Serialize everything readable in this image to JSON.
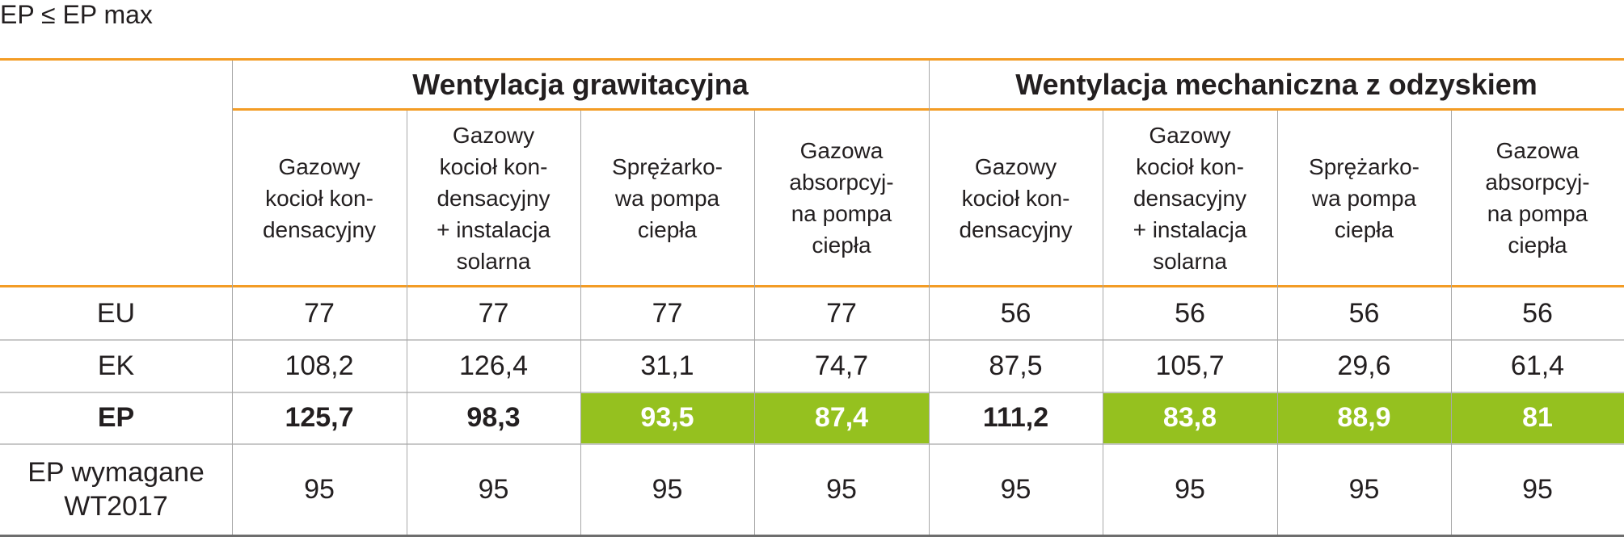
{
  "caption": "EP ≤ EP max",
  "groups": [
    {
      "title": "Wentylacja grawitacyjna"
    },
    {
      "title": "Wentylacja mechaniczna z odzyskiem"
    }
  ],
  "columns": [
    "Gazowy\nkocioł kon-\ndensacyjny",
    "Gazowy\nkocioł kon-\ndensacyjny\n+ instalacja\nsolarna",
    "Sprężarko-\nwa pompa\nciepła",
    "Gazowa\nabsorpcyj-\nna pompa\nciepła",
    "Gazowy\nkocioł kon-\ndensacyjny",
    "Gazowy\nkocioł kon-\ndensacyjny\n+ instalacja\nsolarna",
    "Sprężarko-\nwa pompa\nciepła",
    "Gazowa\nabsorpcyj-\nna pompa\nciepła"
  ],
  "rows": [
    {
      "label": "EU",
      "values": [
        "77",
        "77",
        "77",
        "77",
        "56",
        "56",
        "56",
        "56"
      ]
    },
    {
      "label": "EK",
      "values": [
        "108,2",
        "126,4",
        "31,1",
        "74,7",
        "87,5",
        "105,7",
        "29,6",
        "61,4"
      ]
    },
    {
      "label": "EP",
      "values": [
        "125,7",
        "98,3",
        "93,5",
        "87,4",
        "111,2",
        "83,8",
        "88,9",
        "81"
      ],
      "meets_requirement": [
        false,
        false,
        true,
        true,
        false,
        true,
        true,
        true
      ]
    },
    {
      "label": "EP wymagane\nWT2017",
      "values": [
        "95",
        "95",
        "95",
        "95",
        "95",
        "95",
        "95",
        "95"
      ]
    }
  ],
  "colors": {
    "rule": "#f39c25",
    "highlight": "#95c11f",
    "text": "#231f20"
  }
}
